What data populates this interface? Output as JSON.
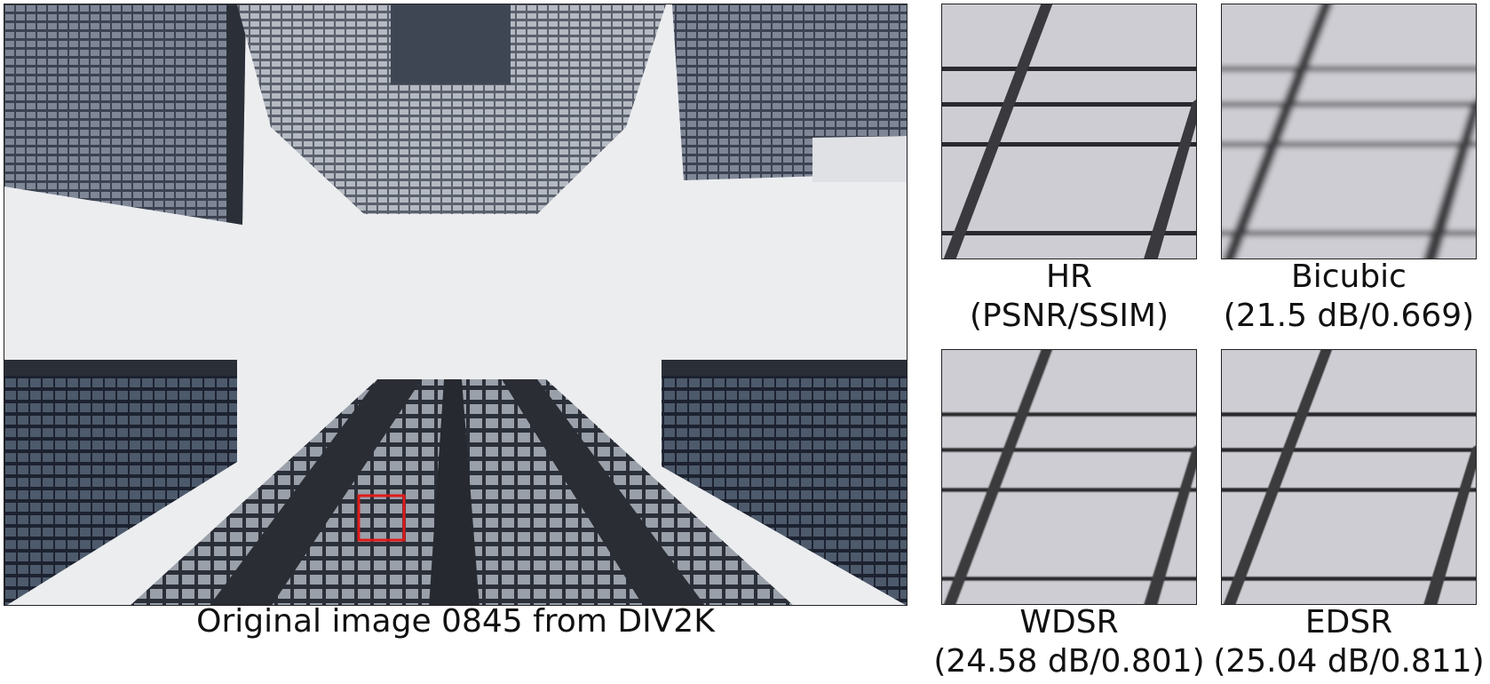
{
  "main_figure": {
    "caption": "Original image 0845 from DIV2K",
    "highlight_color": "#e01b1b"
  },
  "crops": [
    {
      "label": "HR",
      "metrics": "(PSNR/SSIM)"
    },
    {
      "label": "Bicubic",
      "metrics": "(21.5 dB/0.669)"
    },
    {
      "label": "WDSR",
      "metrics": "(24.58 dB/0.801)"
    },
    {
      "label": "EDSR",
      "metrics": "(25.04 dB/0.811)"
    }
  ]
}
